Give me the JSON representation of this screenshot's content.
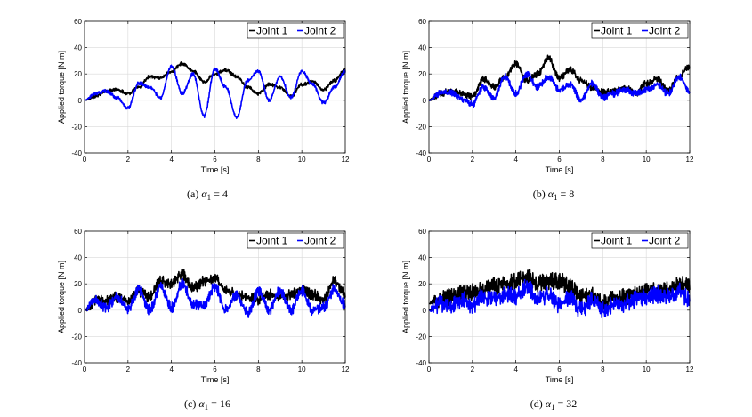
{
  "chart_data": [
    {
      "type": "line",
      "caption": {
        "prefix": "(a)",
        "var": "α",
        "sub": "1",
        "rest": " = 4"
      },
      "xlabel": "Time [s]",
      "ylabel": "Applied torque [N m]",
      "xlim": [
        0,
        12
      ],
      "ylim": [
        -40,
        60
      ],
      "xticks": [
        0,
        2,
        4,
        6,
        8,
        10,
        12
      ],
      "yticks": [
        -40,
        -20,
        0,
        20,
        40,
        60
      ],
      "grid": true,
      "legend": "top-right",
      "noise": 0.8,
      "series": [
        {
          "name": "Joint 1",
          "color": "#000000",
          "x": [
            0,
            0.5,
            1,
            1.5,
            2,
            2.5,
            3,
            3.5,
            4,
            4.5,
            5,
            5.5,
            6,
            6.5,
            7,
            7.5,
            8,
            8.5,
            9,
            9.5,
            10,
            10.5,
            11,
            11.5,
            12
          ],
          "y": [
            0,
            3,
            7,
            8,
            5,
            10,
            18,
            17,
            22,
            28,
            22,
            14,
            20,
            23,
            18,
            10,
            5,
            12,
            10,
            3,
            12,
            14,
            8,
            15,
            23
          ]
        },
        {
          "name": "Joint 2",
          "color": "#0000ff",
          "x": [
            0,
            0.5,
            1,
            1.5,
            2,
            2.5,
            3,
            3.5,
            4,
            4.5,
            5,
            5.5,
            6,
            6.5,
            7,
            7.5,
            8,
            8.5,
            9,
            9.5,
            10,
            10.5,
            11,
            11.5,
            12
          ],
          "y": [
            0,
            5,
            7,
            2,
            -6,
            13,
            10,
            2,
            26,
            5,
            20,
            -12,
            24,
            10,
            -13,
            15,
            22,
            0,
            18,
            2,
            22,
            12,
            -2,
            10,
            22
          ]
        }
      ]
    },
    {
      "type": "line",
      "caption": {
        "prefix": "(b)",
        "var": "α",
        "sub": "1",
        "rest": " = 8"
      },
      "xlabel": "Time [s]",
      "ylabel": "Applied torque [N m]",
      "xlim": [
        0,
        12
      ],
      "ylim": [
        -40,
        60
      ],
      "xticks": [
        0,
        2,
        4,
        6,
        8,
        10,
        12
      ],
      "yticks": [
        -40,
        -20,
        0,
        20,
        40,
        60
      ],
      "grid": true,
      "legend": "top-right",
      "noise": 1.6,
      "series": [
        {
          "name": "Joint 1",
          "color": "#000000",
          "x": [
            0,
            0.5,
            1,
            1.5,
            2,
            2.5,
            3,
            3.5,
            4,
            4.5,
            5,
            5.5,
            6,
            6.5,
            7,
            7.5,
            8,
            8.5,
            9,
            9.5,
            10,
            10.5,
            11,
            11.5,
            12
          ],
          "y": [
            0,
            5,
            7,
            5,
            3,
            16,
            10,
            18,
            28,
            15,
            20,
            32,
            17,
            23,
            15,
            10,
            6,
            7,
            10,
            5,
            13,
            16,
            7,
            18,
            26
          ]
        },
        {
          "name": "Joint 2",
          "color": "#0000ff",
          "x": [
            0,
            0.5,
            1,
            1.5,
            2,
            2.5,
            3,
            3.5,
            4,
            4.5,
            5,
            5.5,
            6,
            6.5,
            7,
            7.5,
            8,
            8.5,
            9,
            9.5,
            10,
            10.5,
            11,
            11.5,
            12
          ],
          "y": [
            0,
            5,
            6,
            1,
            -3,
            10,
            2,
            18,
            5,
            20,
            10,
            18,
            8,
            12,
            0,
            13,
            2,
            5,
            8,
            5,
            8,
            12,
            5,
            18,
            7
          ]
        }
      ]
    },
    {
      "type": "line",
      "caption": {
        "prefix": "(c)",
        "var": "α",
        "sub": "1",
        "rest": " = 16"
      },
      "xlabel": "Time [s]",
      "ylabel": "Applied torque [N m]",
      "xlim": [
        0,
        12
      ],
      "ylim": [
        -40,
        60
      ],
      "xticks": [
        0,
        2,
        4,
        6,
        8,
        10,
        12
      ],
      "yticks": [
        -40,
        -20,
        0,
        20,
        40,
        60
      ],
      "grid": true,
      "legend": "top-right",
      "noise": 2.6,
      "series": [
        {
          "name": "Joint 1",
          "color": "#000000",
          "x": [
            0,
            0.5,
            1,
            1.5,
            2,
            2.5,
            3,
            3.5,
            4,
            4.5,
            5,
            5.5,
            6,
            6.5,
            7,
            7.5,
            8,
            8.5,
            9,
            9.5,
            10,
            10.5,
            11,
            11.5,
            12
          ],
          "y": [
            0,
            7,
            8,
            10,
            6,
            14,
            10,
            22,
            20,
            27,
            17,
            22,
            25,
            15,
            12,
            10,
            8,
            12,
            10,
            12,
            15,
            12,
            8,
            22,
            12
          ]
        },
        {
          "name": "Joint 2",
          "color": "#0000ff",
          "x": [
            0,
            0.5,
            1,
            1.5,
            2,
            2.5,
            3,
            3.5,
            4,
            4.5,
            5,
            5.5,
            6,
            6.5,
            7,
            7.5,
            8,
            8.5,
            9,
            9.5,
            10,
            10.5,
            11,
            11.5,
            12
          ],
          "y": [
            0,
            8,
            2,
            10,
            0,
            16,
            0,
            18,
            2,
            20,
            4,
            4,
            18,
            0,
            12,
            -2,
            14,
            0,
            15,
            0,
            15,
            0,
            2,
            16,
            4
          ]
        }
      ]
    },
    {
      "type": "line",
      "caption": {
        "prefix": "(d)",
        "var": "α",
        "sub": "1",
        "rest": " = 32"
      },
      "xlabel": "Time [s]",
      "ylabel": "Applied torque [N m]",
      "xlim": [
        0,
        12
      ],
      "ylim": [
        -40,
        60
      ],
      "xticks": [
        0,
        2,
        4,
        6,
        8,
        10,
        12
      ],
      "yticks": [
        -40,
        -20,
        0,
        20,
        40,
        60
      ],
      "grid": true,
      "legend": "top-right",
      "noise": 4.2,
      "series": [
        {
          "name": "Joint 1",
          "color": "#000000",
          "x": [
            0,
            0.5,
            1,
            1.5,
            2,
            2.5,
            3,
            3.5,
            4,
            4.5,
            5,
            5.5,
            6,
            6.5,
            7,
            7.5,
            8,
            8.5,
            9,
            9.5,
            10,
            10.5,
            11,
            11.5,
            12
          ],
          "y": [
            5,
            8,
            10,
            12,
            14,
            16,
            18,
            20,
            22,
            25,
            20,
            22,
            22,
            18,
            10,
            12,
            5,
            8,
            10,
            12,
            14,
            16,
            15,
            20,
            18
          ]
        },
        {
          "name": "Joint 2",
          "color": "#0000ff",
          "x": [
            0,
            0.5,
            1,
            1.5,
            2,
            2.5,
            3,
            3.5,
            4,
            4.5,
            5,
            5.5,
            6,
            6.5,
            7,
            7.5,
            8,
            8.5,
            9,
            9.5,
            10,
            10.5,
            11,
            11.5,
            12
          ],
          "y": [
            0,
            5,
            2,
            8,
            4,
            10,
            8,
            12,
            10,
            18,
            8,
            12,
            4,
            10,
            0,
            8,
            0,
            4,
            5,
            8,
            10,
            12,
            10,
            14,
            8
          ]
        }
      ]
    }
  ]
}
